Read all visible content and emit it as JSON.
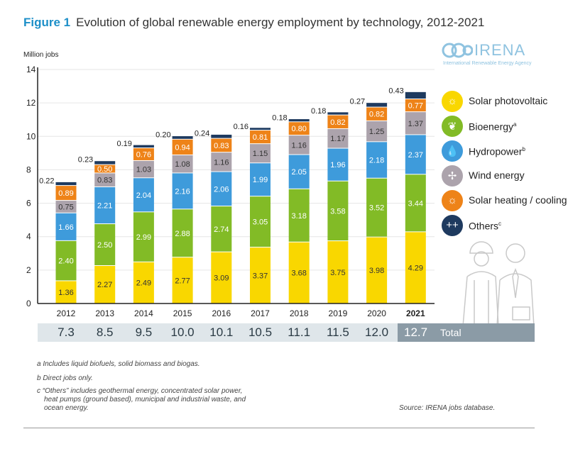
{
  "figure_label": "Figure 1",
  "title": "Evolution of global renewable energy employment by technology, 2012-2021",
  "logo": {
    "name": "IRENA",
    "subtitle": "International Renewable Energy Agency"
  },
  "chart_data": {
    "type": "bar",
    "stacked": true,
    "title": "Evolution of global renewable energy employment by technology, 2012-2021",
    "ylabel": "Million jobs",
    "ylim": [
      0,
      14
    ],
    "yticks": [
      0,
      2,
      4,
      6,
      8,
      10,
      12,
      14
    ],
    "grid": true,
    "legend_position": "right",
    "categories": [
      "2012",
      "2013",
      "2014",
      "2015",
      "2016",
      "2017",
      "2018",
      "2019",
      "2020",
      "2021"
    ],
    "series": [
      {
        "name": "Solar photovoltaic",
        "sup": "",
        "color": "#f9d700",
        "label_color": "#333333",
        "icon": "sun-icon",
        "values": [
          1.36,
          2.27,
          2.49,
          2.77,
          3.09,
          3.37,
          3.68,
          3.75,
          3.98,
          4.29
        ]
      },
      {
        "name": "Bioenergy",
        "sup": "a",
        "color": "#82bb26",
        "label_color": "#ffffff",
        "icon": "leaf-icon",
        "values": [
          2.4,
          2.5,
          2.99,
          2.88,
          2.74,
          3.05,
          3.18,
          3.58,
          3.52,
          3.44
        ]
      },
      {
        "name": "Hydropower",
        "sup": "b",
        "color": "#3e9bdb",
        "label_color": "#ffffff",
        "icon": "water-drop-icon",
        "values": [
          1.66,
          2.21,
          2.04,
          2.16,
          2.06,
          1.99,
          2.05,
          1.96,
          2.18,
          2.37
        ]
      },
      {
        "name": "Wind energy",
        "sup": "",
        "color": "#aca3ac",
        "label_color": "#333333",
        "icon": "wind-turbine-icon",
        "values": [
          0.75,
          0.83,
          1.03,
          1.08,
          1.16,
          1.15,
          1.16,
          1.17,
          1.25,
          1.37
        ]
      },
      {
        "name": "Solar heating / cooling",
        "sup": "",
        "color": "#ee8318",
        "label_color": "#ffffff",
        "icon": "sun-icon",
        "values": [
          0.89,
          0.5,
          0.76,
          0.94,
          0.83,
          0.81,
          0.8,
          0.82,
          0.82,
          0.77
        ]
      },
      {
        "name": "Others",
        "sup": "c",
        "color": "#1e3a5f",
        "label_color": "#333333",
        "icon": "plus-cross-icon",
        "values": [
          0.22,
          0.23,
          0.19,
          0.2,
          0.24,
          0.16,
          0.18,
          0.18,
          0.27,
          0.43
        ]
      }
    ],
    "totals": [
      "7.3",
      "8.5",
      "9.5",
      "10.0",
      "10.1",
      "10.5",
      "11.1",
      "11.5",
      "12.0",
      "12.7"
    ],
    "totals_label": "Total"
  },
  "footnotes": [
    "a  Includes liquid biofuels, solid biomass and biogas.",
    "b  Direct jobs only.",
    "c  “Others” includes geothermal energy, concentrated solar power,",
    "heat pumps (ground based), municipal and industrial waste, and",
    "ocean energy."
  ],
  "source": "Source: IRENA jobs database."
}
